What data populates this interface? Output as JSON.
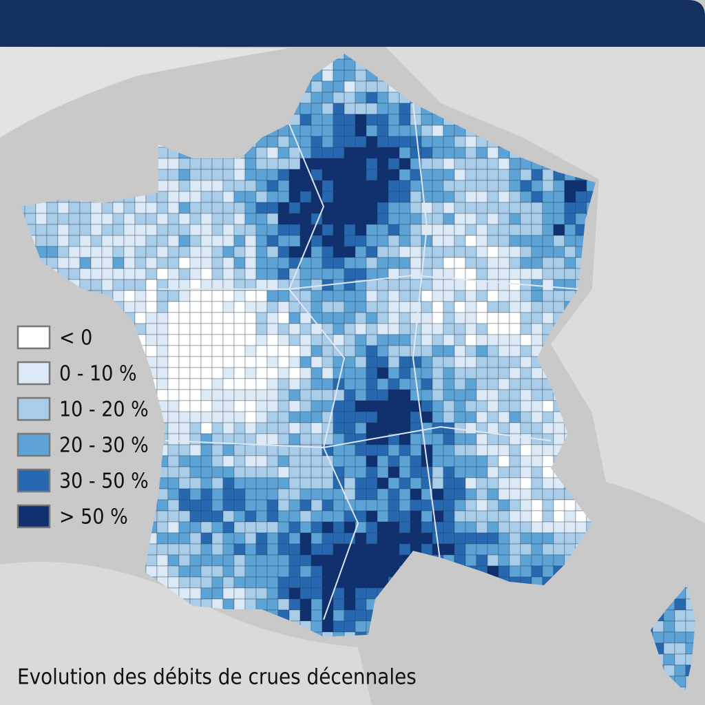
{
  "legend": {
    "items": [
      {
        "label": "< 0",
        "color": "#ffffff"
      },
      {
        "label": "0 - 10 %",
        "color": "#dce9f6"
      },
      {
        "label": "10 - 20 %",
        "color": "#a9cde9"
      },
      {
        "label": "20 - 30 %",
        "color": "#5ea3d6"
      },
      {
        "label": "30 - 50 %",
        "color": "#2768b0"
      },
      {
        "label": "> 50 %",
        "color": "#0f2f6e"
      }
    ]
  },
  "caption": "Evolution des débits de crues décennales"
}
